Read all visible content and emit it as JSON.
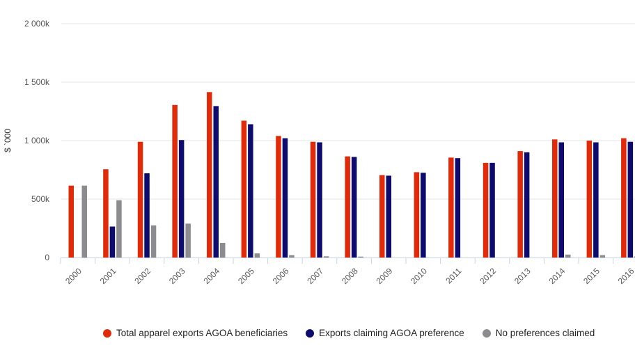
{
  "chart_data": {
    "type": "bar",
    "title": "",
    "xlabel": "",
    "ylabel": "$ `000",
    "ylim": [
      0,
      2000
    ],
    "yticks": [
      0,
      500,
      1000,
      1500,
      2000
    ],
    "ytick_labels": [
      "0",
      "500k",
      "1 000k",
      "1 500k",
      "2 000k"
    ],
    "categories": [
      "2000",
      "2001",
      "2002",
      "2003",
      "2004",
      "2005",
      "2006",
      "2007",
      "2008",
      "2009",
      "2010",
      "2011",
      "2012",
      "2013",
      "2014",
      "2015",
      "2016"
    ],
    "series": [
      {
        "name": "Total apparel exports AGOA beneficiaries",
        "color": "#e02a0a",
        "values": [
          615,
          755,
          990,
          1305,
          1415,
          1170,
          1040,
          990,
          865,
          705,
          730,
          855,
          810,
          910,
          1010,
          1000,
          1020
        ]
      },
      {
        "name": "Exports claiming AGOA preference",
        "color": "#0d0c6e",
        "values": [
          0,
          265,
          720,
          1005,
          1295,
          1140,
          1020,
          985,
          860,
          700,
          725,
          850,
          810,
          900,
          985,
          985,
          990
        ]
      },
      {
        "name": "No preferences claimed",
        "color": "#8c8c90",
        "values": [
          615,
          490,
          275,
          290,
          125,
          35,
          20,
          10,
          8,
          0,
          0,
          0,
          0,
          0,
          25,
          20,
          10
        ]
      }
    ],
    "grid": true,
    "legend_position": "bottom"
  }
}
